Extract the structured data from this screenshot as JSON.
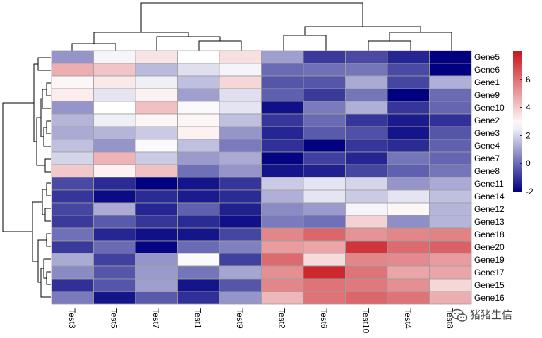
{
  "chart_data": {
    "type": "heatmap",
    "title": "",
    "rows": [
      "Gene5",
      "Gene6",
      "Gene1",
      "Gene9",
      "Gene10",
      "Gene2",
      "Gene3",
      "Gene4",
      "Gene7",
      "Gene8",
      "Gene11",
      "Gene14",
      "Gene12",
      "Gene13",
      "Gene18",
      "Gene20",
      "Gene19",
      "Gene17",
      "Gene15",
      "Gene16"
    ],
    "columns": [
      "Test3",
      "Test5",
      "Test7",
      "Test1",
      "Test9",
      "Test2",
      "Test6",
      "Test10",
      "Test4",
      "Test8"
    ],
    "values": [
      [
        0.8,
        2.6,
        3.4,
        2.8,
        3.5,
        1.0,
        -0.9,
        -0.6,
        -1.3,
        -2.0
      ],
      [
        4.6,
        4.1,
        1.5,
        2.2,
        2.6,
        0.0,
        0.1,
        0.2,
        -0.6,
        -2.0
      ],
      [
        3.0,
        3.3,
        2.5,
        1.6,
        3.7,
        -0.4,
        -0.4,
        1.2,
        -0.7,
        1.3
      ],
      [
        3.2,
        2.3,
        3.1,
        1.0,
        2.2,
        -0.2,
        -0.9,
        0.2,
        -2.0,
        0.0
      ],
      [
        0.8,
        2.8,
        4.2,
        2.7,
        2.3,
        -1.7,
        0.3,
        1.3,
        -1.0,
        -0.1
      ],
      [
        1.4,
        2.5,
        3.0,
        3.0,
        1.6,
        -1.0,
        0.0,
        -1.0,
        -1.5,
        -1.1
      ],
      [
        1.2,
        1.4,
        1.8,
        3.1,
        0.8,
        -1.3,
        -0.3,
        -0.5,
        -1.6,
        -0.4
      ],
      [
        1.6,
        0.8,
        2.7,
        1.6,
        0.3,
        -1.1,
        -2.0,
        -1.0,
        -1.2,
        -0.2
      ],
      [
        2.0,
        4.5,
        1.8,
        0.9,
        1.2,
        -1.9,
        -0.8,
        -1.3,
        0.2,
        -0.1
      ],
      [
        4.0,
        3.1,
        4.2,
        0.1,
        0.8,
        -1.6,
        -1.4,
        -0.7,
        -0.2,
        0.2
      ],
      [
        -0.6,
        -1.2,
        -2.0,
        -1.6,
        -1.0,
        1.8,
        2.3,
        2.0,
        0.8,
        1.2
      ],
      [
        -1.0,
        -1.8,
        -1.2,
        -1.5,
        -1.2,
        1.3,
        2.3,
        1.8,
        2.3,
        1.6
      ],
      [
        -0.7,
        1.2,
        -1.3,
        -0.2,
        -1.4,
        0.6,
        0.9,
        2.6,
        3.0,
        1.4
      ],
      [
        -0.9,
        -0.3,
        -1.0,
        -1.2,
        -1.7,
        0.3,
        0.1,
        3.8,
        0.7,
        1.4
      ],
      [
        0.1,
        -1.3,
        -1.7,
        -1.6,
        -0.7,
        5.5,
        6.2,
        5.2,
        5.5,
        5.6
      ],
      [
        -0.9,
        0.0,
        -1.9,
        0.0,
        0.4,
        5.0,
        4.8,
        7.3,
        6.1,
        6.3
      ],
      [
        1.2,
        -0.8,
        0.8,
        2.7,
        -0.8,
        6.1,
        3.6,
        5.5,
        5.4,
        5.0
      ],
      [
        0.6,
        -0.4,
        0.9,
        0.2,
        1.1,
        5.3,
        7.6,
        5.9,
        4.8,
        4.8
      ],
      [
        -1.1,
        -0.4,
        1.0,
        -1.6,
        -0.4,
        5.5,
        5.9,
        5.8,
        5.3,
        3.7
      ],
      [
        0.3,
        -1.6,
        -0.3,
        -1.1,
        0.8,
        4.4,
        5.9,
        6.2,
        5.9,
        4.6
      ]
    ],
    "color_scale": {
      "min": -2,
      "mid": 2.8,
      "max": 8,
      "low": "#000080",
      "mid_color": "#ffffff",
      "high": "#c8161d"
    },
    "legend_ticks": [
      "6",
      "4",
      "2",
      "0",
      "-2"
    ],
    "legend_tick_values": [
      6,
      4,
      2,
      0,
      -2
    ]
  },
  "watermark": "猪猪生信"
}
